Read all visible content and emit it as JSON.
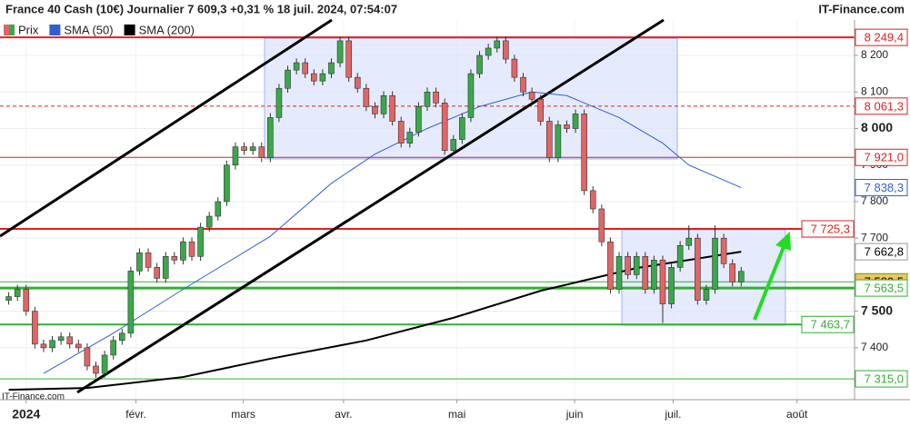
{
  "chart_data": {
    "type": "candlestick",
    "title": "France 40 Cash (10€) Journalier 7 609,3 +0,31 % 18 juil. 2024, 07:54:07",
    "source": "IT-Finance.com",
    "legend": [
      "Prix",
      "SMA (50)",
      "SMA (200)"
    ],
    "up_color": "#3aa84a",
    "down_color": "#e06666",
    "ohlc": [
      [
        7530,
        7552,
        7518,
        7540
      ],
      [
        7540,
        7572,
        7528,
        7560
      ],
      [
        7560,
        7572,
        7488,
        7500
      ],
      [
        7500,
        7512,
        7398,
        7410
      ],
      [
        7410,
        7422,
        7388,
        7400
      ],
      [
        7400,
        7432,
        7388,
        7420
      ],
      [
        7420,
        7442,
        7408,
        7430
      ],
      [
        7430,
        7442,
        7398,
        7410
      ],
      [
        7410,
        7422,
        7388,
        7400
      ],
      [
        7400,
        7412,
        7338,
        7350
      ],
      [
        7350,
        7362,
        7318,
        7330
      ],
      [
        7330,
        7392,
        7318,
        7380
      ],
      [
        7380,
        7432,
        7368,
        7420
      ],
      [
        7420,
        7452,
        7408,
        7440
      ],
      [
        7440,
        7622,
        7428,
        7610
      ],
      [
        7610,
        7672,
        7598,
        7660
      ],
      [
        7660,
        7672,
        7608,
        7620
      ],
      [
        7620,
        7632,
        7578,
        7590
      ],
      [
        7590,
        7662,
        7578,
        7650
      ],
      [
        7650,
        7662,
        7628,
        7640
      ],
      [
        7640,
        7702,
        7628,
        7690
      ],
      [
        7690,
        7702,
        7638,
        7650
      ],
      [
        7650,
        7742,
        7638,
        7730
      ],
      [
        7730,
        7772,
        7718,
        7760
      ],
      [
        7760,
        7812,
        7748,
        7800
      ],
      [
        7800,
        7912,
        7788,
        7900
      ],
      [
        7900,
        7962,
        7888,
        7950
      ],
      [
        7950,
        7962,
        7928,
        7940
      ],
      [
        7940,
        7962,
        7928,
        7950
      ],
      [
        7950,
        7962,
        7908,
        7920
      ],
      [
        7920,
        8042,
        7908,
        8030
      ],
      [
        8030,
        8122,
        8018,
        8110
      ],
      [
        8110,
        8172,
        8098,
        8160
      ],
      [
        8160,
        8192,
        8148,
        8180
      ],
      [
        8180,
        8192,
        8138,
        8150
      ],
      [
        8150,
        8162,
        8118,
        8130
      ],
      [
        8130,
        8162,
        8118,
        8150
      ],
      [
        8150,
        8192,
        8138,
        8180
      ],
      [
        8180,
        8252,
        8168,
        8240
      ],
      [
        8240,
        8252,
        8128,
        8140
      ],
      [
        8140,
        8152,
        8098,
        8110
      ],
      [
        8110,
        8122,
        8048,
        8060
      ],
      [
        8060,
        8072,
        8028,
        8040
      ],
      [
        8040,
        8102,
        8028,
        8090
      ],
      [
        8090,
        8102,
        8008,
        8020
      ],
      [
        8020,
        8032,
        7948,
        7960
      ],
      [
        7960,
        8002,
        7948,
        7990
      ],
      [
        7990,
        8072,
        7978,
        8060
      ],
      [
        8060,
        8112,
        8048,
        8100
      ],
      [
        8100,
        8112,
        8058,
        8070
      ],
      [
        8070,
        8082,
        7928,
        7940
      ],
      [
        7940,
        7982,
        7928,
        7970
      ],
      [
        7970,
        8042,
        7958,
        8030
      ],
      [
        8030,
        8162,
        8018,
        8150
      ],
      [
        8150,
        8212,
        8138,
        8200
      ],
      [
        8200,
        8232,
        8188,
        8220
      ],
      [
        8220,
        8252,
        8208,
        8240
      ],
      [
        8240,
        8252,
        8178,
        8190
      ],
      [
        8190,
        8202,
        8128,
        8140
      ],
      [
        8140,
        8152,
        8088,
        8100
      ],
      [
        8100,
        8112,
        8068,
        8080
      ],
      [
        8080,
        8092,
        8008,
        8020
      ],
      [
        8020,
        8032,
        7908,
        7920
      ],
      [
        7920,
        8022,
        7908,
        8010
      ],
      [
        8010,
        8022,
        7988,
        8000
      ],
      [
        8000,
        8052,
        7988,
        8040
      ],
      [
        8040,
        8052,
        7818,
        7830
      ],
      [
        7830,
        7842,
        7768,
        7780
      ],
      [
        7780,
        7792,
        7678,
        7690
      ],
      [
        7690,
        7702,
        7548,
        7560
      ],
      [
        7560,
        7662,
        7548,
        7650
      ],
      [
        7650,
        7662,
        7588,
        7600
      ],
      [
        7600,
        7662,
        7588,
        7650
      ],
      [
        7650,
        7662,
        7548,
        7560
      ],
      [
        7560,
        7652,
        7548,
        7640
      ],
      [
        7640,
        7652,
        7468,
        7520
      ],
      [
        7520,
        7632,
        7508,
        7620
      ],
      [
        7620,
        7692,
        7608,
        7680
      ],
      [
        7680,
        7735,
        7668,
        7700
      ],
      [
        7700,
        7712,
        7518,
        7530
      ],
      [
        7530,
        7572,
        7518,
        7560
      ],
      [
        7560,
        7735,
        7548,
        7700
      ],
      [
        7700,
        7712,
        7618,
        7630
      ],
      [
        7630,
        7642,
        7568,
        7580
      ],
      [
        7580,
        7621,
        7568,
        7609
      ]
    ],
    "series": [
      {
        "name": "SMA (50)",
        "color": "#2f5fd0",
        "x": [
          4,
          12,
          20,
          30,
          37,
          42,
          48,
          54,
          60,
          64,
          70,
          75,
          78,
          84
        ],
        "values": [
          7330,
          7440,
          7560,
          7705,
          7850,
          7930,
          8000,
          8060,
          8100,
          8090,
          8030,
          7960,
          7900,
          7838.3
        ],
        "last_label": "7 838,3"
      },
      {
        "name": "SMA (200)",
        "color": "#000000",
        "x": [
          0,
          9,
          20,
          30,
          41,
          51,
          61,
          72,
          84
        ],
        "values": [
          7285,
          7290,
          7320,
          7370,
          7420,
          7482,
          7556,
          7618,
          7662.8
        ],
        "last_label": "7 662,8"
      }
    ],
    "levels": [
      {
        "value": 8249.4,
        "label": "8 249,4",
        "color": "#e02020",
        "width": 2,
        "dash": false
      },
      {
        "value": 8061.3,
        "label": "8 061,3",
        "color": "#e02020",
        "width": 1,
        "dash": true
      },
      {
        "value": 7921.0,
        "label": "7 921,0",
        "color": "#e02020",
        "width": 1,
        "dash": false
      },
      {
        "value": 7725.3,
        "label": "7 725,3",
        "color": "#e02020",
        "width": 2,
        "dash": false,
        "label_inside": true
      },
      {
        "value": 7580.5,
        "label": "7 580,5",
        "color": "#30b030",
        "width": 1,
        "dash": false,
        "label_fill": "#f7c35a"
      },
      {
        "value": 7563.5,
        "label": "7 563,5",
        "color": "#30b030",
        "width": 3,
        "dash": false
      },
      {
        "value": 7463.7,
        "label": "7 463,7",
        "color": "#30b030",
        "width": 2,
        "dash": false,
        "label_inside": true
      },
      {
        "value": 7315.0,
        "label": "7 315,0",
        "color": "#30b030",
        "width": 1,
        "dash": false
      }
    ],
    "xlim": [
      -1,
      97
    ],
    "xticks": [
      {
        "value": 2,
        "label": "2024"
      },
      {
        "value": 14.6,
        "label": "févr."
      },
      {
        "value": 26.9,
        "label": "mars"
      },
      {
        "value": 38.4,
        "label": "avr."
      },
      {
        "value": 51.4,
        "label": "mai"
      },
      {
        "value": 64.9,
        "label": "juin"
      },
      {
        "value": 76.2,
        "label": "juil."
      },
      {
        "value": 90.4,
        "label": "août"
      }
    ],
    "ylim": [
      7258,
      8297
    ],
    "yticks": [
      {
        "value": 7400,
        "label": "7 400"
      },
      {
        "value": 7500,
        "label": "7 500"
      },
      {
        "value": 7700,
        "label": "7 700"
      },
      {
        "value": 7800,
        "label": "7 800"
      },
      {
        "value": 7900,
        "label": "7 900"
      },
      {
        "value": 8000,
        "label": "8 000"
      },
      {
        "value": 8100,
        "label": "8 100"
      },
      {
        "value": 8200,
        "label": "8 200"
      }
    ],
    "grid": true
  }
}
